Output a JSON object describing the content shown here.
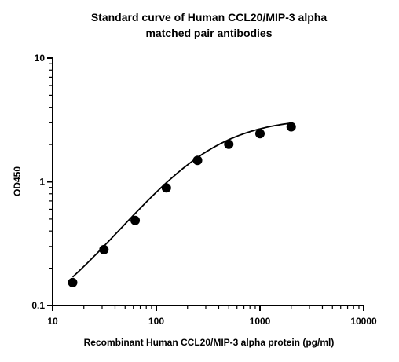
{
  "chart_data": {
    "type": "scatter",
    "title_lines": [
      "Standard curve of Human CCL20/MIP-3 alpha",
      "matched pair antibodies"
    ],
    "xlabel": "Recombinant Human CCL20/MIP-3 alpha protein (pg/ml)",
    "ylabel": "OD450",
    "x_scale": "log",
    "y_scale": "log",
    "xlim": [
      10,
      10000
    ],
    "ylim": [
      0.1,
      10
    ],
    "x_ticks": [
      {
        "value": 10,
        "label": "10"
      },
      {
        "value": 100,
        "label": "100"
      },
      {
        "value": 1000,
        "label": "1000"
      },
      {
        "value": 10000,
        "label": "10000"
      }
    ],
    "y_ticks": [
      {
        "value": 0.1,
        "label": "0.1"
      },
      {
        "value": 1,
        "label": "1"
      },
      {
        "value": 10,
        "label": "10"
      }
    ],
    "grid": false,
    "legend": "none",
    "series": [
      {
        "points": [
          {
            "x": 15.6,
            "y": 0.153
          },
          {
            "x": 31.25,
            "y": 0.283
          },
          {
            "x": 62.5,
            "y": 0.487
          },
          {
            "x": 125,
            "y": 0.893
          },
          {
            "x": 250,
            "y": 1.49
          },
          {
            "x": 500,
            "y": 2.01
          },
          {
            "x": 1000,
            "y": 2.45
          },
          {
            "x": 2000,
            "y": 2.78
          }
        ],
        "fit": {
          "type": "4PL",
          "bottom": 0.05,
          "top": 3.3,
          "ec50": 280,
          "hill": 1.13
        },
        "color": "#000000"
      }
    ]
  }
}
